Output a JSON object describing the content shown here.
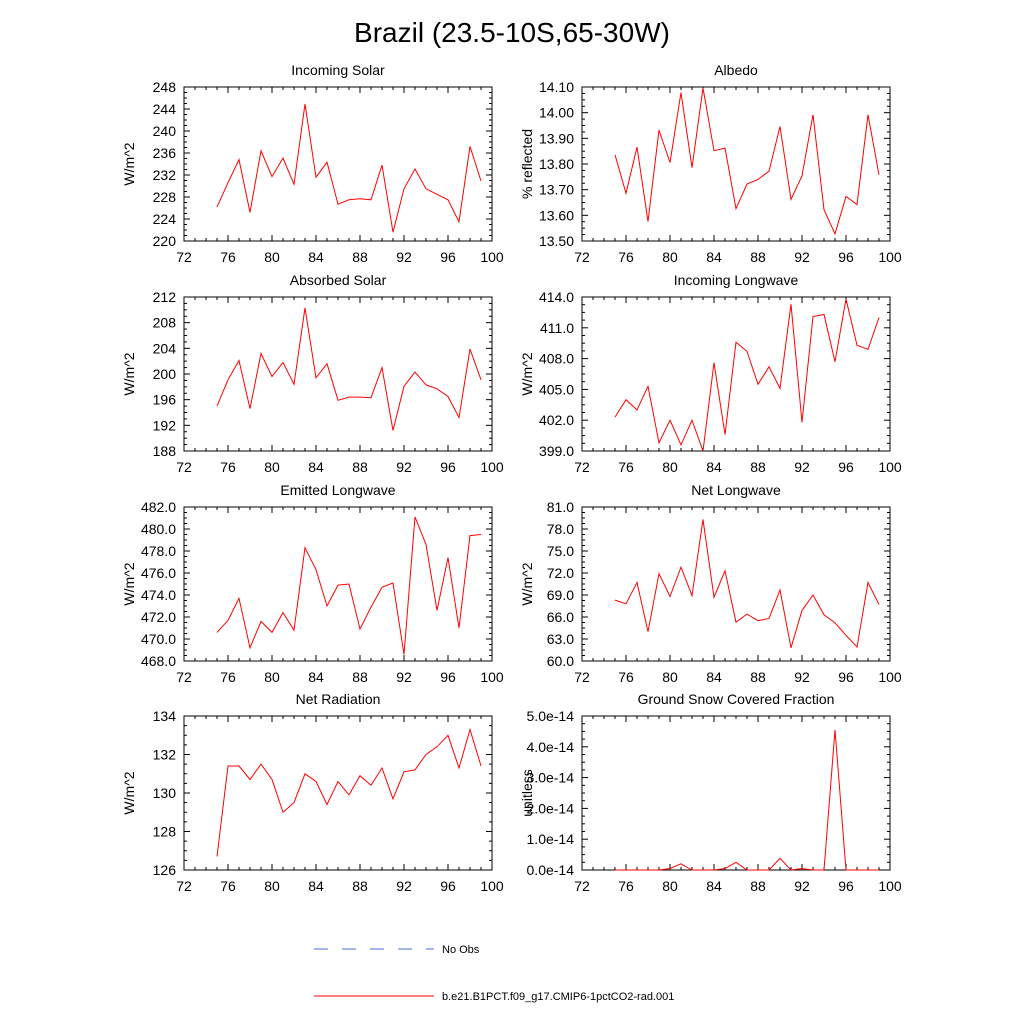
{
  "title": "Brazil (23.5-10S,65-30W)",
  "colors": {
    "model": "#ff0000",
    "obs": "#4a6fd0",
    "axis": "#000000"
  },
  "legend": {
    "obs_label": "No Obs",
    "model_label": "b.e21.B1PCT.f09_g17.CMIP6-1pctCO2-rad.001"
  },
  "chart_data": [
    {
      "type": "line",
      "title": "Incoming Solar",
      "ylabel": "W/m^2",
      "xlim": [
        72,
        100
      ],
      "ylim": [
        220,
        248
      ],
      "xticks": [
        "72",
        "76",
        "80",
        "84",
        "88",
        "92",
        "96",
        "100"
      ],
      "yticks": [
        "220",
        "224",
        "228",
        "232",
        "236",
        "240",
        "244",
        "248"
      ],
      "series": [
        {
          "x": [
            75,
            76,
            77,
            78,
            79,
            80,
            81,
            82,
            83,
            84,
            85,
            86,
            87,
            88,
            89,
            90,
            91,
            92,
            93,
            94,
            95,
            96,
            97,
            98,
            99
          ],
          "y": [
            226.2,
            230.6,
            234.8,
            225.2,
            236.4,
            231.7,
            235.1,
            230.3,
            244.9,
            231.6,
            234.3,
            226.7,
            227.5,
            227.7,
            227.5,
            233.8,
            221.6,
            229.5,
            233.1,
            229.5,
            228.5,
            227.5,
            223.5,
            237.2,
            230.9
          ]
        }
      ]
    },
    {
      "type": "line",
      "title": "Albedo",
      "ylabel": "% reflected",
      "xlim": [
        72,
        100
      ],
      "ylim": [
        13.5,
        14.1
      ],
      "xticks": [
        "72",
        "76",
        "80",
        "84",
        "88",
        "92",
        "96",
        "100"
      ],
      "yticks": [
        "13.50",
        "13.60",
        "13.70",
        "13.80",
        "13.90",
        "14.00",
        "14.10"
      ],
      "series": [
        {
          "x": [
            75,
            76,
            77,
            78,
            79,
            80,
            81,
            82,
            83,
            84,
            85,
            86,
            87,
            88,
            89,
            90,
            91,
            92,
            93,
            94,
            95,
            96,
            97,
            98,
            99
          ],
          "y": [
            13.836,
            13.686,
            13.866,
            13.576,
            13.932,
            13.806,
            14.078,
            13.786,
            14.096,
            13.852,
            13.862,
            13.626,
            13.722,
            13.74,
            13.772,
            13.946,
            13.662,
            13.754,
            13.992,
            13.622,
            13.528,
            13.674,
            13.642,
            13.992,
            13.758
          ]
        }
      ]
    },
    {
      "type": "line",
      "title": "Absorbed Solar",
      "ylabel": "W/m^2",
      "xlim": [
        72,
        100
      ],
      "ylim": [
        188,
        212
      ],
      "xticks": [
        "72",
        "76",
        "80",
        "84",
        "88",
        "92",
        "96",
        "100"
      ],
      "yticks": [
        "188",
        "192",
        "196",
        "200",
        "204",
        "208",
        "212"
      ],
      "series": [
        {
          "x": [
            75,
            76,
            77,
            78,
            79,
            80,
            81,
            82,
            83,
            84,
            85,
            86,
            87,
            88,
            89,
            90,
            91,
            92,
            93,
            94,
            95,
            96,
            97,
            98,
            99
          ],
          "y": [
            195.0,
            199.1,
            202.1,
            194.6,
            203.2,
            199.6,
            201.8,
            198.4,
            210.3,
            199.4,
            201.6,
            195.9,
            196.4,
            196.4,
            196.3,
            201.0,
            191.2,
            198.1,
            200.3,
            198.3,
            197.7,
            196.5,
            193.2,
            203.9,
            199.1
          ]
        }
      ]
    },
    {
      "type": "line",
      "title": "Incoming Longwave",
      "ylabel": "W/m^2",
      "xlim": [
        72,
        100
      ],
      "ylim": [
        399.0,
        414.0
      ],
      "xticks": [
        "72",
        "76",
        "80",
        "84",
        "88",
        "92",
        "96",
        "100"
      ],
      "yticks": [
        "399.0",
        "402.0",
        "405.0",
        "408.0",
        "411.0",
        "414.0"
      ],
      "series": [
        {
          "x": [
            75,
            76,
            77,
            78,
            79,
            80,
            81,
            82,
            83,
            84,
            85,
            86,
            87,
            88,
            89,
            90,
            91,
            92,
            93,
            94,
            95,
            96,
            97,
            98,
            99
          ],
          "y": [
            402.3,
            404.0,
            403.0,
            405.3,
            399.8,
            402.0,
            399.6,
            402.0,
            399.0,
            407.6,
            400.6,
            409.6,
            408.7,
            405.5,
            407.2,
            405.1,
            413.3,
            401.8,
            412.1,
            412.3,
            407.7,
            413.8,
            409.3,
            408.9,
            412.0
          ]
        }
      ]
    },
    {
      "type": "line",
      "title": "Emitted Longwave",
      "ylabel": "W/m^2",
      "xlim": [
        72,
        100
      ],
      "ylim": [
        468.0,
        482.0
      ],
      "xticks": [
        "72",
        "76",
        "80",
        "84",
        "88",
        "92",
        "96",
        "100"
      ],
      "yticks": [
        "468.0",
        "470.0",
        "472.0",
        "474.0",
        "476.0",
        "478.0",
        "480.0",
        "482.0"
      ],
      "series": [
        {
          "x": [
            75,
            76,
            77,
            78,
            79,
            80,
            81,
            82,
            83,
            84,
            85,
            86,
            87,
            88,
            89,
            90,
            91,
            92,
            93,
            94,
            95,
            96,
            97,
            98,
            99
          ],
          "y": [
            470.6,
            471.7,
            473.7,
            469.2,
            471.6,
            470.6,
            472.4,
            470.8,
            478.3,
            476.3,
            473.0,
            474.9,
            475.0,
            470.9,
            472.9,
            474.7,
            475.1,
            468.6,
            481.1,
            478.6,
            472.6,
            477.4,
            471.0,
            479.4,
            479.5
          ]
        }
      ]
    },
    {
      "type": "line",
      "title": "Net Longwave",
      "ylabel": "W/m^2",
      "xlim": [
        72,
        100
      ],
      "ylim": [
        60.0,
        81.0
      ],
      "xticks": [
        "72",
        "76",
        "80",
        "84",
        "88",
        "92",
        "96",
        "100"
      ],
      "yticks": [
        "60.0",
        "63.0",
        "66.0",
        "69.0",
        "72.0",
        "75.0",
        "78.0",
        "81.0"
      ],
      "series": [
        {
          "x": [
            75,
            76,
            77,
            78,
            79,
            80,
            81,
            82,
            83,
            84,
            85,
            86,
            87,
            88,
            89,
            90,
            91,
            92,
            93,
            94,
            95,
            96,
            97,
            98,
            99
          ],
          "y": [
            68.3,
            67.8,
            70.7,
            64.0,
            71.9,
            68.8,
            72.8,
            68.9,
            79.3,
            68.7,
            72.3,
            65.3,
            66.4,
            65.5,
            65.8,
            69.7,
            61.8,
            66.9,
            69.0,
            66.3,
            65.2,
            63.5,
            61.9,
            70.7,
            67.7
          ]
        }
      ]
    },
    {
      "type": "line",
      "title": "Net Radiation",
      "ylabel": "W/m^2",
      "xlim": [
        72,
        100
      ],
      "ylim": [
        126,
        134
      ],
      "xticks": [
        "72",
        "76",
        "80",
        "84",
        "88",
        "92",
        "96",
        "100"
      ],
      "yticks": [
        "126",
        "128",
        "130",
        "132",
        "134"
      ],
      "series": [
        {
          "x": [
            75,
            76,
            77,
            78,
            79,
            80,
            81,
            82,
            83,
            84,
            85,
            86,
            87,
            88,
            89,
            90,
            91,
            92,
            93,
            94,
            95,
            96,
            97,
            98,
            99
          ],
          "y": [
            126.7,
            131.4,
            131.4,
            130.7,
            131.5,
            130.7,
            129.0,
            129.5,
            131.0,
            130.6,
            129.4,
            130.6,
            129.9,
            130.9,
            130.4,
            131.3,
            129.7,
            131.1,
            131.2,
            132.0,
            132.4,
            133.0,
            131.3,
            133.3,
            131.4
          ]
        }
      ]
    },
    {
      "type": "line",
      "title": "Ground Snow Covered Fraction",
      "ylabel": "unitless",
      "xlim": [
        72,
        100
      ],
      "ylim": [
        0,
        5e-14
      ],
      "xticks": [
        "72",
        "76",
        "80",
        "84",
        "88",
        "92",
        "96",
        "100"
      ],
      "yticks": [
        "0.0e-14",
        "1.0e-14",
        "2.0e-14",
        "3.0e-14",
        "4.0e-14",
        "5.0e-14"
      ],
      "series": [
        {
          "x": [
            75,
            76,
            77,
            78,
            79,
            80,
            81,
            82,
            83,
            84,
            85,
            86,
            87,
            88,
            89,
            90,
            91,
            92,
            93,
            94,
            95,
            96,
            97,
            98,
            99
          ],
          "y": [
            0,
            0,
            0,
            0,
            0,
            5e-16,
            2e-15,
            0,
            0,
            0,
            5e-16,
            2.5e-15,
            0,
            0,
            0,
            3.8e-15,
            0,
            5e-16,
            0,
            0,
            4.55e-14,
            0,
            0,
            0,
            0
          ]
        }
      ]
    }
  ]
}
